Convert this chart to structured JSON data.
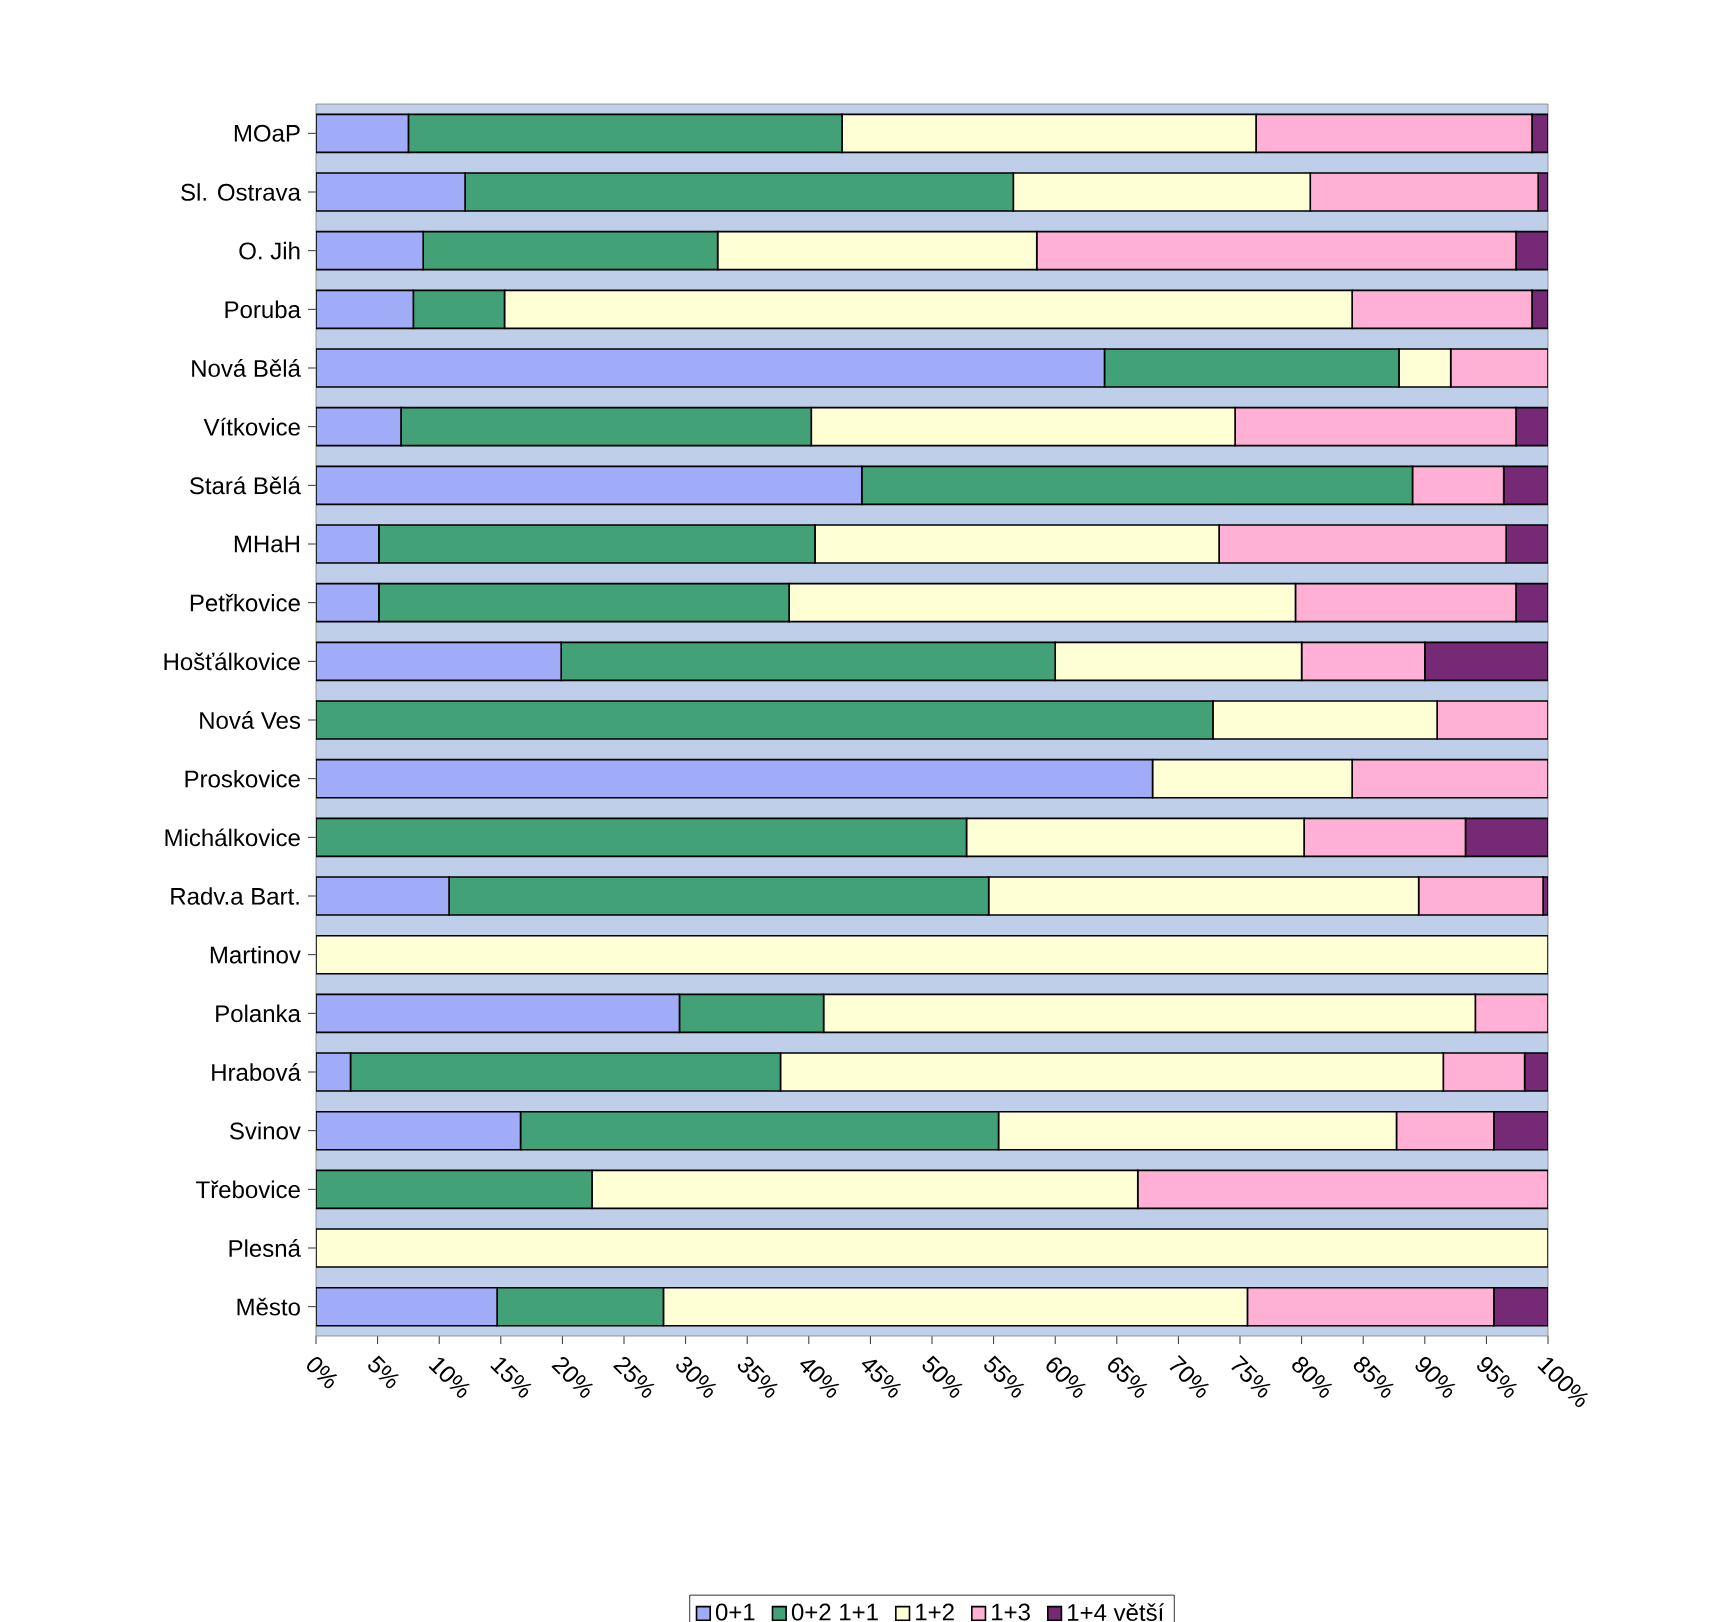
{
  "chart_data": {
    "type": "bar",
    "orientation": "horizontal",
    "stacked": true,
    "categories": [
      "MOaP",
      "Sl. Ostrava",
      "O. Jih",
      "Poruba",
      "Nová Bělá",
      "Vítkovice",
      "Stará Bělá",
      "MHaH",
      "Petřkovice",
      "Hošťálkovice",
      "Nová Ves",
      "Proskovice",
      "Michálkovice",
      "Radv.a Bart.",
      "Martinov",
      "Polanka",
      "Hrabová",
      "Svinov",
      "Třebovice",
      "Plesná",
      "Město"
    ],
    "series": [
      {
        "name": "0+1",
        "color": "#a0acf8",
        "values": [
          7.5,
          12.1,
          8.7,
          7.9,
          64.0,
          6.9,
          44.3,
          5.1,
          5.1,
          19.9,
          0,
          67.9,
          0,
          10.8,
          0,
          29.5,
          2.8,
          16.6,
          0,
          0,
          14.7
        ]
      },
      {
        "name": "0+2 1+1",
        "color": "#43a178",
        "values": [
          35.2,
          44.5,
          23.9,
          7.4,
          23.9,
          33.3,
          44.7,
          35.4,
          33.3,
          40.1,
          72.8,
          0,
          52.8,
          43.8,
          0,
          11.7,
          34.9,
          38.8,
          22.4,
          0,
          13.5
        ]
      },
      {
        "name": "1+2",
        "color": "#ffffd6",
        "values": [
          33.6,
          24.1,
          25.9,
          68.8,
          4.2,
          34.4,
          0,
          32.8,
          41.1,
          20.0,
          18.2,
          16.2,
          27.4,
          34.9,
          100,
          52.9,
          53.8,
          32.3,
          44.3,
          100,
          47.4
        ]
      },
      {
        "name": "1+3",
        "color": "#ffb0d4",
        "values": [
          22.4,
          18.5,
          38.9,
          14.6,
          7.9,
          22.8,
          7.4,
          23.3,
          17.9,
          10.0,
          9.0,
          15.9,
          13.1,
          10.1,
          0,
          5.9,
          6.6,
          7.9,
          33.3,
          0,
          20.0
        ]
      },
      {
        "name": "1+4 větší",
        "color": "#762a76",
        "values": [
          1.3,
          0.8,
          2.6,
          1.3,
          0,
          2.6,
          3.6,
          3.4,
          2.6,
          10.0,
          0,
          0,
          6.7,
          0.4,
          0,
          0,
          1.9,
          4.4,
          0,
          0,
          4.4
        ]
      }
    ],
    "xlim": [
      0,
      100
    ],
    "xticks": [
      {
        "value": 0,
        "label": "0%"
      },
      {
        "value": 5,
        "label": "5%"
      },
      {
        "value": 10,
        "label": "10%"
      },
      {
        "value": 15,
        "label": "15%"
      },
      {
        "value": 20,
        "label": "20%"
      },
      {
        "value": 25,
        "label": "25%"
      },
      {
        "value": 30,
        "label": "30%"
      },
      {
        "value": 35,
        "label": "35%"
      },
      {
        "value": 40,
        "label": "40%"
      },
      {
        "value": 45,
        "label": "45%"
      },
      {
        "value": 50,
        "label": "50%"
      },
      {
        "value": 55,
        "label": "55%"
      },
      {
        "value": 60,
        "label": "60%"
      },
      {
        "value": 65,
        "label": "65%"
      },
      {
        "value": 70,
        "label": "70%"
      },
      {
        "value": 75,
        "label": "75%"
      },
      {
        "value": 80,
        "label": "80%"
      },
      {
        "value": 85,
        "label": "85%"
      },
      {
        "value": 90,
        "label": "90%"
      },
      {
        "value": 95,
        "label": "95%"
      },
      {
        "value": 100,
        "label": "100%"
      }
    ],
    "grid": false,
    "legend": "bottom"
  }
}
